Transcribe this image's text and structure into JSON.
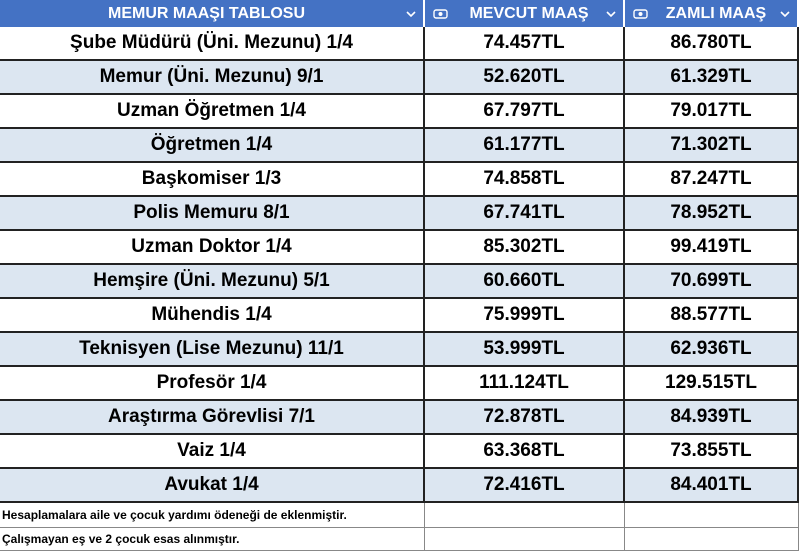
{
  "header": [
    "MEMUR MAAŞI TABLOSU",
    "MEVCUT MAAŞ",
    "ZAMLI MAAŞ"
  ],
  "rows": [
    [
      "Şube Müdürü (Üni. Mezunu) 1/4",
      "74.457TL",
      "86.780TL"
    ],
    [
      "Memur (Üni. Mezunu) 9/1",
      "52.620TL",
      "61.329TL"
    ],
    [
      "Uzman Öğretmen 1/4",
      "67.797TL",
      "79.017TL"
    ],
    [
      "Öğretmen 1/4",
      "61.177TL",
      "71.302TL"
    ],
    [
      "Başkomiser 1/3",
      "74.858TL",
      "87.247TL"
    ],
    [
      "Polis Memuru 8/1",
      "67.741TL",
      "78.952TL"
    ],
    [
      "Uzman Doktor 1/4",
      "85.302TL",
      "99.419TL"
    ],
    [
      "Hemşire (Üni. Mezunu) 5/1",
      "60.660TL",
      "70.699TL"
    ],
    [
      "Mühendis 1/4",
      "75.999TL",
      "88.577TL"
    ],
    [
      "Teknisyen (Lise Mezunu) 11/1",
      "53.999TL",
      "62.936TL"
    ],
    [
      "Profesör 1/4",
      "111.124TL",
      "129.515TL"
    ],
    [
      "Araştırma Görevlisi 7/1",
      "72.878TL",
      "84.939TL"
    ],
    [
      "Vaiz 1/4",
      "63.368TL",
      "73.855TL"
    ],
    [
      "Avukat 1/4",
      "72.416TL",
      "84.401TL"
    ]
  ],
  "notes": [
    "Hesaplamalara aile ve çocuk yardımı ödeneği de eklenmiştir.",
    "Çalışmayan eş ve 2 çocuk esas alınmıştır."
  ]
}
